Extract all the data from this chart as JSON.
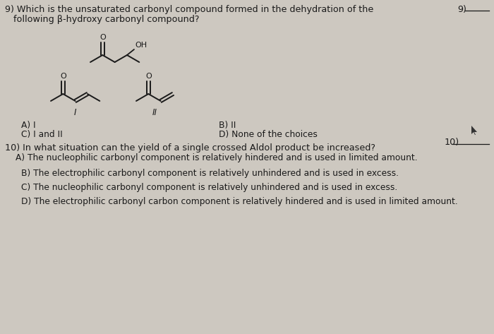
{
  "background_color": "#cdc8c0",
  "title_q9_line1": "9) Which is the unsaturated carbonyl compound formed in the dehydration of the",
  "title_q9_line2": "   following β-hydroxy carbonyl compound?",
  "q9_number": "9)",
  "answer_A": "A) I",
  "answer_B": "B) II",
  "answer_C": "C) I and II",
  "answer_D": "D) None of the choices",
  "title_q10": "10) In what situation can the yield of a single crossed Aldol product be increased?",
  "q10_number": "10)",
  "ans10_A": "A) The nucleophilic carbonyl component is relatively hindered and is used in limited amount.",
  "ans10_B": "B) The electrophilic carbonyl component is relatively unhindered and is used in excess.",
  "ans10_C": "C) The nucleophilic carbonyl component is relatively unhindered and is used in excess.",
  "ans10_D": "D) The electrophilic carbonyl carbon component is relatively hindered and is used in limited amount.",
  "text_color": "#1a1a1a",
  "font_size_main": 9.2,
  "font_size_small": 8.8,
  "font_size_struct": 8.0
}
